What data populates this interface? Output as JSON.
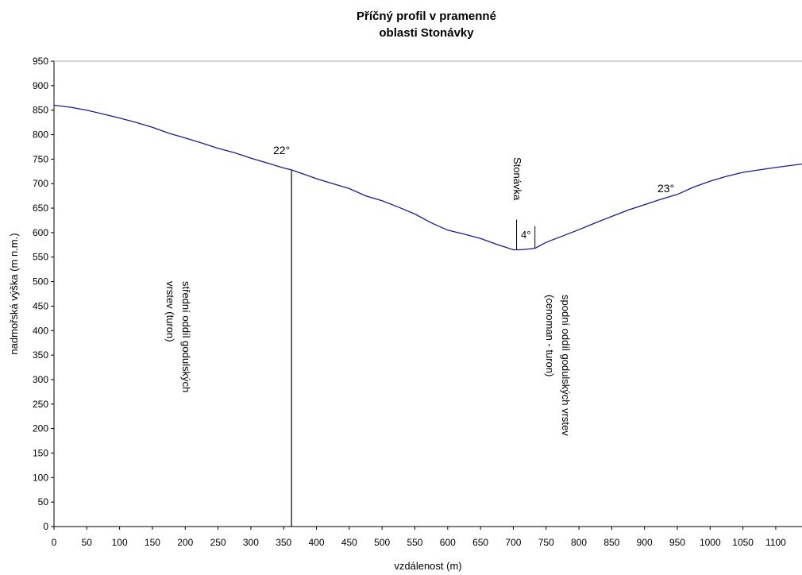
{
  "chart_data": {
    "type": "line",
    "title": [
      "Příčný profil v pramenné",
      "oblasti Stonávky"
    ],
    "xlabel": "vzdálenost (m)",
    "ylabel": "nadmořská výška (m n.m.)",
    "xlim": [
      0,
      1140
    ],
    "ylim": [
      0,
      950
    ],
    "x_ticks": [
      0,
      50,
      100,
      150,
      200,
      250,
      300,
      350,
      400,
      450,
      500,
      550,
      600,
      650,
      700,
      750,
      800,
      850,
      900,
      950,
      1000,
      1050,
      1100
    ],
    "y_ticks": [
      0,
      50,
      100,
      150,
      200,
      250,
      300,
      350,
      400,
      450,
      500,
      550,
      600,
      650,
      700,
      750,
      800,
      850,
      900,
      950
    ],
    "grid": false,
    "line_color": "#1a1a8c",
    "series": [
      {
        "x": [
          0,
          25,
          50,
          75,
          100,
          125,
          150,
          175,
          200,
          225,
          250,
          275,
          300,
          325,
          350,
          362,
          375,
          400,
          425,
          450,
          475,
          500,
          525,
          550,
          575,
          600,
          625,
          650,
          675,
          700,
          710,
          720,
          733,
          750,
          775,
          800,
          825,
          850,
          875,
          900,
          925,
          950,
          975,
          1000,
          1025,
          1050,
          1075,
          1100,
          1140
        ],
        "y": [
          860,
          856,
          850,
          842,
          834,
          825,
          815,
          803,
          793,
          783,
          772,
          763,
          752,
          742,
          732,
          728,
          722,
          710,
          700,
          690,
          675,
          665,
          652,
          638,
          620,
          605,
          597,
          588,
          576,
          565,
          565,
          566,
          568,
          580,
          593,
          606,
          620,
          633,
          646,
          657,
          668,
          678,
          693,
          705,
          715,
          723,
          728,
          733,
          740
        ]
      }
    ],
    "annotations": {
      "angle_left": "22°",
      "angle_right": "23°",
      "angle_valley": "4°",
      "stream_name": "Stonávka",
      "layer_left_lines": [
        "střední oddíl godulských",
        "vrstev (turon)"
      ],
      "layer_right_lines": [
        "spodní oddíl godulských vrstev",
        "(cenoman - turon)"
      ]
    },
    "boundary_x": 362,
    "valley_markers_x": [
      705,
      733
    ]
  }
}
